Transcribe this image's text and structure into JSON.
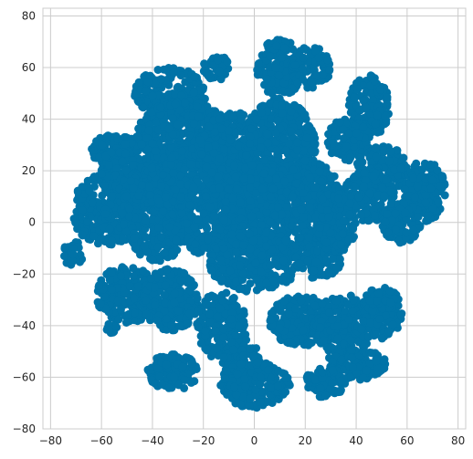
{
  "chart_data": {
    "type": "scatter",
    "title": "",
    "xlabel": "",
    "ylabel": "",
    "xlim": [
      -83,
      83
    ],
    "ylim": [
      -80,
      83
    ],
    "xticks": [
      -80,
      -60,
      -40,
      -20,
      0,
      20,
      40,
      60,
      80
    ],
    "yticks": [
      -80,
      -60,
      -40,
      -20,
      0,
      20,
      40,
      60,
      80
    ],
    "grid": true,
    "legend": "none",
    "series": [
      {
        "color": "#0173a7",
        "clusters": [
          {
            "cx": -71,
            "cy": -12,
            "rx": 4,
            "ry": 5
          },
          {
            "cx": -55,
            "cy": 28,
            "rx": 9,
            "ry": 6
          },
          {
            "cx": -48,
            "cy": 20,
            "rx": 12,
            "ry": 14
          },
          {
            "cx": -58,
            "cy": 5,
            "rx": 14,
            "ry": 14
          },
          {
            "cx": -38,
            "cy": 5,
            "rx": 14,
            "ry": 20
          },
          {
            "cx": -33,
            "cy": 50,
            "rx": 14,
            "ry": 10
          },
          {
            "cx": -28,
            "cy": 35,
            "rx": 18,
            "ry": 12
          },
          {
            "cx": -20,
            "cy": 10,
            "rx": 18,
            "ry": 22
          },
          {
            "cx": -15,
            "cy": 60,
            "rx": 5,
            "ry": 5
          },
          {
            "cx": -10,
            "cy": 30,
            "rx": 12,
            "ry": 14
          },
          {
            "cx": -50,
            "cy": -28,
            "rx": 12,
            "ry": 11
          },
          {
            "cx": -33,
            "cy": -30,
            "rx": 11,
            "ry": 12
          },
          {
            "cx": -56,
            "cy": -41,
            "rx": 2,
            "ry": 2
          },
          {
            "cx": -32,
            "cy": -58,
            "rx": 10,
            "ry": 7
          },
          {
            "cx": -13,
            "cy": -40,
            "rx": 10,
            "ry": 13
          },
          {
            "cx": -5,
            "cy": -55,
            "rx": 8,
            "ry": 10
          },
          {
            "cx": 0,
            "cy": -63,
            "rx": 14,
            "ry": 9
          },
          {
            "cx": 10,
            "cy": 60,
            "rx": 9,
            "ry": 11
          },
          {
            "cx": 22,
            "cy": 60,
            "rx": 8,
            "ry": 8
          },
          {
            "cx": 10,
            "cy": 30,
            "rx": 14,
            "ry": 18
          },
          {
            "cx": 3,
            "cy": 5,
            "rx": 16,
            "ry": 18
          },
          {
            "cx": 20,
            "cy": 10,
            "rx": 14,
            "ry": 14
          },
          {
            "cx": 0,
            "cy": -15,
            "rx": 18,
            "ry": 12
          },
          {
            "cx": 25,
            "cy": -12,
            "rx": 10,
            "ry": 10
          },
          {
            "cx": 18,
            "cy": -38,
            "rx": 12,
            "ry": 10
          },
          {
            "cx": 35,
            "cy": -40,
            "rx": 12,
            "ry": 12
          },
          {
            "cx": 50,
            "cy": -35,
            "rx": 8,
            "ry": 10
          },
          {
            "cx": 40,
            "cy": -55,
            "rx": 12,
            "ry": 6
          },
          {
            "cx": 28,
            "cy": -62,
            "rx": 8,
            "ry": 6
          },
          {
            "cx": 45,
            "cy": 45,
            "rx": 8,
            "ry": 12
          },
          {
            "cx": 37,
            "cy": 32,
            "rx": 9,
            "ry": 8
          },
          {
            "cx": 50,
            "cy": 20,
            "rx": 10,
            "ry": 10
          },
          {
            "cx": 45,
            "cy": 10,
            "rx": 10,
            "ry": 10
          },
          {
            "cx": 67,
            "cy": 12,
            "rx": 8,
            "ry": 12
          },
          {
            "cx": 58,
            "cy": 0,
            "rx": 8,
            "ry": 8
          },
          {
            "cx": 32,
            "cy": 0,
            "rx": 8,
            "ry": 12
          }
        ]
      }
    ]
  }
}
